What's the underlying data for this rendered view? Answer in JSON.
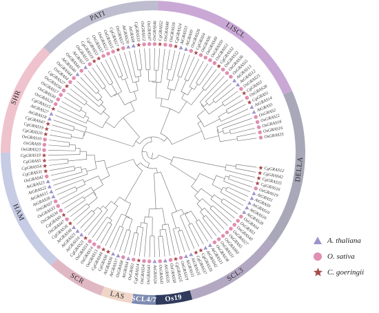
{
  "colors": {
    "branch": "#666666",
    "triangle": "#9b95c9",
    "circle": "#e08fb0",
    "star": "#a94b4b"
  },
  "subfamilies": [
    {
      "name": "PATI",
      "color": "#bdbdcf"
    },
    {
      "name": "LISCL",
      "color": "#c9a8d6"
    },
    {
      "name": "DELLA",
      "color": "#a8a8b8"
    },
    {
      "name": "SCL3",
      "color": "#b3a8c2"
    },
    {
      "name": "Os19",
      "color": "#2f3a5c"
    },
    {
      "name": "SCL4/7",
      "color": "#7d8bb0"
    },
    {
      "name": "LAS",
      "color": "#f0d6c8"
    },
    {
      "name": "SCR",
      "color": "#e0b8c4"
    },
    {
      "name": "HAM",
      "color": "#c7cce5"
    },
    {
      "name": "SHR",
      "color": "#efc3cd"
    }
  ],
  "legend": [
    {
      "symbol": "triangle-icon",
      "label": "A. thaliana"
    },
    {
      "symbol": "circle-icon",
      "label": "O. sativa"
    },
    {
      "symbol": "star-icon",
      "label": "C. goeringii"
    }
  ],
  "leaves": [
    {
      "label": "OsGRAS35",
      "sp": "c"
    },
    {
      "label": "OsGRAS16",
      "sp": "c"
    },
    {
      "label": "OsGRAS18",
      "sp": "c"
    },
    {
      "label": "OsGRAS22",
      "sp": "c"
    },
    {
      "label": "OsGRAS2",
      "sp": "c"
    },
    {
      "label": "AtGRAS5",
      "sp": "t"
    },
    {
      "label": "AtGRAS14",
      "sp": "t"
    },
    {
      "label": "CgGRAS1",
      "sp": "s"
    },
    {
      "label": "OsGRAS28",
      "sp": "c"
    },
    {
      "label": "CgGRAS3",
      "sp": "s"
    },
    {
      "label": "OsGRAS25",
      "sp": "c"
    },
    {
      "label": "AtGRAS12",
      "sp": "t"
    },
    {
      "label": "AtGRAS13",
      "sp": "t"
    },
    {
      "label": "OsGRAS55",
      "sp": "c"
    },
    {
      "label": "OsGRAS36",
      "sp": "c"
    },
    {
      "label": "OsGRAS32",
      "sp": "c"
    },
    {
      "label": "CgGRAS32",
      "sp": "s"
    },
    {
      "label": "OsGRAS51",
      "sp": "c"
    },
    {
      "label": "OsGRAS50",
      "sp": "c"
    },
    {
      "label": "OsGRAS49",
      "sp": "c"
    },
    {
      "label": "OsGRAS6",
      "sp": "c"
    },
    {
      "label": "CgGRAS4",
      "sp": "s"
    },
    {
      "label": "OsGRAS26",
      "sp": "c"
    },
    {
      "label": "AtGRAS9",
      "sp": "t"
    },
    {
      "label": "AtGRAS33",
      "sp": "t"
    },
    {
      "label": "CgGRAS24",
      "sp": "s"
    },
    {
      "label": "OsGRAS39",
      "sp": "c"
    },
    {
      "label": "OsGRAS48",
      "sp": "c"
    },
    {
      "label": "CgGRAS52",
      "sp": "s"
    },
    {
      "label": "OsGRAS46",
      "sp": "c"
    },
    {
      "label": "OsGRAS47",
      "sp": "c"
    },
    {
      "label": "OsGRAS12",
      "sp": "c"
    },
    {
      "label": "CgGRAS33",
      "sp": "s"
    },
    {
      "label": "AtGRAS8",
      "sp": "t"
    },
    {
      "label": "AtGRAS20",
      "sp": "t"
    },
    {
      "label": "OsGRAS37",
      "sp": "c"
    },
    {
      "label": "CgGRAS17",
      "sp": "s"
    },
    {
      "label": "OsGRAS15",
      "sp": "c"
    },
    {
      "label": "OsGRAS21",
      "sp": "c"
    },
    {
      "label": "OsGRAS57",
      "sp": "c"
    },
    {
      "label": "CgGRAS51",
      "sp": "s"
    },
    {
      "label": "CgGRAS19",
      "sp": "s"
    },
    {
      "label": "OsGRAS11",
      "sp": "c"
    },
    {
      "label": "AtGRAS7",
      "sp": "t"
    },
    {
      "label": "OsGRAS45",
      "sp": "c"
    },
    {
      "label": "AtGRAS40",
      "sp": "t"
    },
    {
      "label": "OsGRAS44",
      "sp": "c"
    },
    {
      "label": "OsGRAS4",
      "sp": "c"
    },
    {
      "label": "CgGRAS27",
      "sp": "s"
    },
    {
      "label": "OsGRAS56",
      "sp": "c"
    },
    {
      "label": "OsGRAS17",
      "sp": "c"
    },
    {
      "label": "OsGRAS30",
      "sp": "c"
    },
    {
      "label": "OsGRAS29",
      "sp": "c"
    },
    {
      "label": "CgGRAS15",
      "sp": "s"
    },
    {
      "label": "AtGRAS27",
      "sp": "t"
    },
    {
      "label": "AtGRAS18",
      "sp": "t"
    },
    {
      "label": "CgGRAS47",
      "sp": "s"
    },
    {
      "label": "CgGRAS19",
      "sp": "s"
    },
    {
      "label": "CgGRAS20",
      "sp": "s"
    },
    {
      "label": "OsGRAS10",
      "sp": "c"
    },
    {
      "label": "OsGRAS9",
      "sp": "c"
    },
    {
      "label": "OsGRAS23",
      "sp": "c"
    },
    {
      "label": "CgGRAS10",
      "sp": "s"
    },
    {
      "label": "CgGRAS5",
      "sp": "s"
    },
    {
      "label": "CgGRAS54",
      "sp": "s"
    },
    {
      "label": "CgGRAS31",
      "sp": "s"
    },
    {
      "label": "OsGRAS42",
      "sp": "c"
    },
    {
      "label": "AtGRAS23",
      "sp": "t"
    },
    {
      "label": "AtGRAS22",
      "sp": "t"
    },
    {
      "label": "AtGRAS15",
      "sp": "t"
    },
    {
      "label": "AtGRAS26",
      "sp": "t"
    },
    {
      "label": "OsGRAS7",
      "sp": "c"
    },
    {
      "label": "OsGRAS33",
      "sp": "c"
    },
    {
      "label": "OsGRAS34",
      "sp": "c"
    },
    {
      "label": "CgGRAS9",
      "sp": "s"
    },
    {
      "label": "OsGRAS47",
      "sp": "c"
    },
    {
      "label": "CgGRAS36",
      "sp": "s"
    },
    {
      "label": "AtGRAS38",
      "sp": "t"
    },
    {
      "label": "AtGRAS21",
      "sp": "t"
    },
    {
      "label": "AtGRAS16",
      "sp": "t"
    },
    {
      "label": "CgGRAS21",
      "sp": "s"
    },
    {
      "label": "OsGRAS53",
      "sp": "c"
    },
    {
      "label": "OsGRAS14",
      "sp": "c"
    },
    {
      "label": "OsGRAS13",
      "sp": "c"
    },
    {
      "label": "CgGRAS44",
      "sp": "s"
    },
    {
      "label": "CgGRAS6",
      "sp": "s"
    },
    {
      "label": "AtGRAS36",
      "sp": "t"
    },
    {
      "label": "AtGRAS37",
      "sp": "t"
    },
    {
      "label": "OsGRAS8",
      "sp": "c"
    },
    {
      "label": "AtGRAS4",
      "sp": "t"
    },
    {
      "label": "OsGRAS1",
      "sp": "c"
    },
    {
      "label": "CgGRAS14",
      "sp": "s"
    },
    {
      "label": "OsGRAS54",
      "sp": "c"
    },
    {
      "label": "OsGRAS43",
      "sp": "c"
    },
    {
      "label": "AtGRAS24",
      "sp": "t"
    },
    {
      "label": "OsGRAS41",
      "sp": "c"
    },
    {
      "label": "AtGRAS35",
      "sp": "t"
    },
    {
      "label": "OsGRAS58",
      "sp": "c"
    },
    {
      "label": "CgGRAS25",
      "sp": "s"
    },
    {
      "label": "OsGRAS19",
      "sp": "c"
    },
    {
      "label": "AtGRAS11",
      "sp": "t"
    },
    {
      "label": "AtGRAS25",
      "sp": "t"
    },
    {
      "label": "CgGRAS37",
      "sp": "s"
    },
    {
      "label": "CgGRAS26",
      "sp": "s"
    },
    {
      "label": "AtGRAS42",
      "sp": "t"
    },
    {
      "label": "AtGRAS31",
      "sp": "t"
    },
    {
      "label": "OsGRAS38",
      "sp": "c"
    },
    {
      "label": "OsGRAS31",
      "sp": "c"
    },
    {
      "label": "OsGRAS60",
      "sp": "c"
    },
    {
      "label": "OsGRAS5",
      "sp": "c"
    },
    {
      "label": "OsGRAS27",
      "sp": "c"
    },
    {
      "label": "OsGRAS40",
      "sp": "c"
    },
    {
      "label": "OsGRAS3",
      "sp": "c"
    },
    {
      "label": "OsGRAS4",
      "sp": "c"
    },
    {
      "label": "AtGRAS28",
      "sp": "t"
    },
    {
      "label": "AtGRAS16",
      "sp": "t"
    },
    {
      "label": "AtGRAS10",
      "sp": "t"
    },
    {
      "label": "AtGRAS9",
      "sp": "t"
    },
    {
      "label": "AtGRAS1",
      "sp": "t"
    },
    {
      "label": "OsGRAS19",
      "sp": "c"
    },
    {
      "label": "CgGRAS16",
      "sp": "s"
    },
    {
      "label": "CgGRAS35",
      "sp": "s"
    },
    {
      "label": "CgGRAS42",
      "sp": "s"
    },
    {
      "label": "CgGRAS12",
      "sp": "s"
    }
  ]
}
